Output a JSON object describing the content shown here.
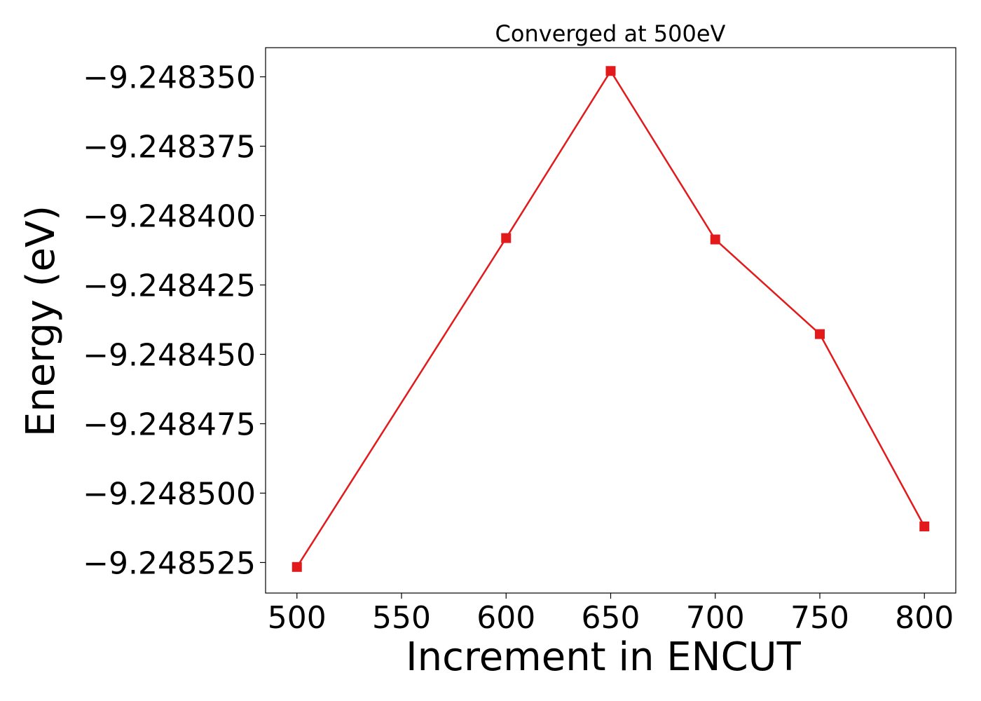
{
  "chart_data": {
    "type": "line",
    "title": "Converged at 500eV",
    "xlabel": "Increment in ENCUT",
    "ylabel": "Energy (eV)",
    "x": [
      500,
      600,
      650,
      700,
      750,
      800
    ],
    "series": [
      {
        "values": [
          -9.2485266,
          -9.2484081,
          -9.2483479,
          -9.2484086,
          -9.2484427,
          -9.248512
        ],
        "color": "#e31a1c",
        "marker": "square"
      }
    ],
    "xlim": [
      485,
      815
    ],
    "ylim": [
      -9.248536,
      -9.2483395
    ],
    "xticks": [
      500,
      550,
      600,
      650,
      700,
      750,
      800
    ],
    "xtick_labels": [
      "500",
      "550",
      "600",
      "650",
      "700",
      "750",
      "800"
    ],
    "yticks": [
      -9.24835,
      -9.248375,
      -9.2484,
      -9.248425,
      -9.24845,
      -9.248475,
      -9.2485,
      -9.248525
    ],
    "ytick_labels": [
      "−9.248350",
      "−9.248375",
      "−9.248400",
      "−9.248425",
      "−9.248450",
      "−9.248475",
      "−9.248500",
      "−9.248525"
    ],
    "grid": false,
    "legend": "none"
  }
}
